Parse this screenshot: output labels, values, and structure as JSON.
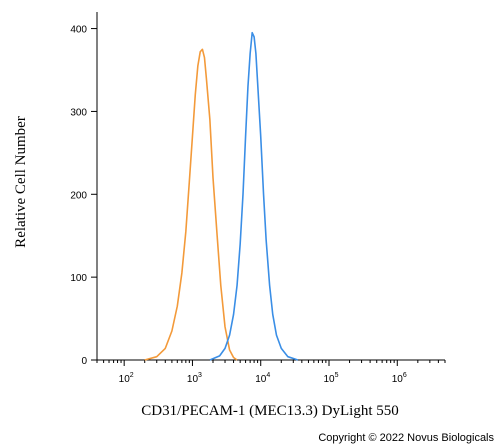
{
  "chart_data": {
    "type": "line",
    "xlabel": "CD31/PECAM-1 (MEC13.3) DyLight 550",
    "ylabel": "Relative Cell Number",
    "x_scale": "log",
    "xlim": [
      40,
      5000000
    ],
    "ylim": [
      0,
      420
    ],
    "x_ticks": [
      {
        "base": "10",
        "exp": "2",
        "value": 100
      },
      {
        "base": "10",
        "exp": "3",
        "value": 1000
      },
      {
        "base": "10",
        "exp": "4",
        "value": 10000
      },
      {
        "base": "10",
        "exp": "5",
        "value": 100000
      },
      {
        "base": "10",
        "exp": "6",
        "value": 1000000
      }
    ],
    "y_ticks": [
      "0",
      "100",
      "200",
      "300",
      "400"
    ],
    "grid": false,
    "series": [
      {
        "color": "#f39a3a",
        "points": [
          [
            200,
            0
          ],
          [
            300,
            4
          ],
          [
            400,
            14
          ],
          [
            500,
            35
          ],
          [
            600,
            65
          ],
          [
            700,
            105
          ],
          [
            800,
            155
          ],
          [
            900,
            215
          ],
          [
            1000,
            270
          ],
          [
            1100,
            320
          ],
          [
            1200,
            355
          ],
          [
            1300,
            372
          ],
          [
            1400,
            375
          ],
          [
            1500,
            365
          ],
          [
            1600,
            340
          ],
          [
            1800,
            290
          ],
          [
            2000,
            220
          ],
          [
            2300,
            150
          ],
          [
            2600,
            90
          ],
          [
            3000,
            40
          ],
          [
            3500,
            12
          ],
          [
            4000,
            3
          ],
          [
            4500,
            0
          ]
        ]
      },
      {
        "color": "#3a8ee6",
        "points": [
          [
            1800,
            0
          ],
          [
            2500,
            5
          ],
          [
            3000,
            14
          ],
          [
            3500,
            30
          ],
          [
            4000,
            55
          ],
          [
            4500,
            90
          ],
          [
            5000,
            140
          ],
          [
            5500,
            200
          ],
          [
            6000,
            270
          ],
          [
            6500,
            330
          ],
          [
            7000,
            370
          ],
          [
            7500,
            395
          ],
          [
            8000,
            390
          ],
          [
            8500,
            370
          ],
          [
            9000,
            335
          ],
          [
            10000,
            270
          ],
          [
            11000,
            200
          ],
          [
            12000,
            145
          ],
          [
            13500,
            90
          ],
          [
            15000,
            55
          ],
          [
            17000,
            30
          ],
          [
            20000,
            14
          ],
          [
            25000,
            4
          ],
          [
            35000,
            0
          ]
        ]
      }
    ]
  },
  "footer": {
    "copyright": "Copyright © 2022 Novus Biologicals"
  }
}
